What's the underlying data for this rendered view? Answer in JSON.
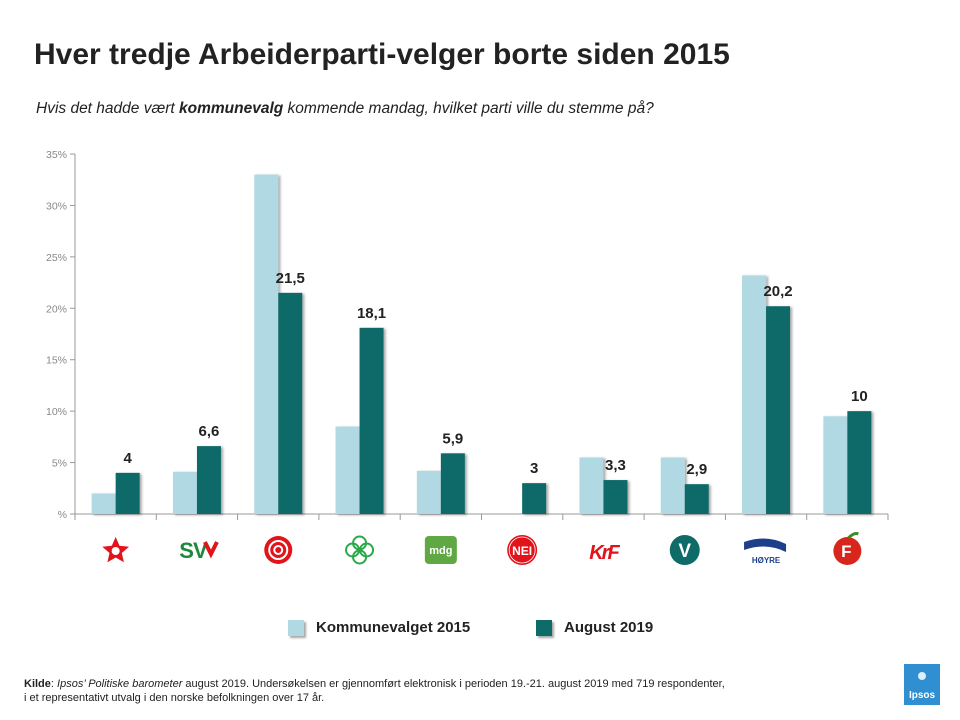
{
  "title": "Hver tredje Arbeiderparti-velger borte siden 2015",
  "subtitle": {
    "before": "Hvis det hadde vært ",
    "bold": "kommunevalg",
    "after": " kommende mandag, hvilket parti ville du stemme på?"
  },
  "colors": {
    "series_2015": "#b0d9e3",
    "series_2019": "#0e6b68",
    "axis": "#999999",
    "tick_text": "#888888"
  },
  "chart_data": {
    "type": "bar",
    "title": "Hver tredje Arbeiderparti-velger borte siden 2015",
    "xlabel": "",
    "ylabel": "",
    "ylim": [
      0,
      35
    ],
    "yticks": [
      0,
      5,
      10,
      15,
      20,
      25,
      30,
      35
    ],
    "ytick_labels": [
      "%",
      "5%",
      "10%",
      "15%",
      "20%",
      "25%",
      "30%",
      "35%"
    ],
    "categories": [
      "Rødt",
      "SV",
      "Arbeiderpartiet",
      "Senterpartiet",
      "MDG",
      "Folkeaksjonen nei til mer bompenger",
      "KrF",
      "Venstre",
      "Høyre",
      "FrP"
    ],
    "series": [
      {
        "name": "Kommunevalget 2015",
        "values": [
          2.0,
          4.1,
          33.0,
          8.5,
          4.2,
          0,
          5.5,
          5.5,
          23.2,
          9.5
        ]
      },
      {
        "name": "August 2019",
        "values": [
          4,
          6.6,
          21.5,
          18.1,
          5.9,
          3,
          3.3,
          2.9,
          20.2,
          10
        ]
      }
    ],
    "data_labels": [
      "4",
      "6,6",
      "21,5",
      "18,1",
      "5,9",
      "3",
      "3,3",
      "2,9",
      "20,2",
      "10"
    ],
    "party_logos": [
      {
        "icon": "rodt-star-icon",
        "text": ""
      },
      {
        "icon": "sv-logo-icon",
        "text": "SV"
      },
      {
        "icon": "ap-rose-icon",
        "text": ""
      },
      {
        "icon": "sp-clover-icon",
        "text": ""
      },
      {
        "icon": "mdg-logo-icon",
        "text": "mdg"
      },
      {
        "icon": "fnb-logo-icon",
        "text": "NEI"
      },
      {
        "icon": "krf-logo-icon",
        "text": "KrF"
      },
      {
        "icon": "venstre-logo-icon",
        "text": "V"
      },
      {
        "icon": "hoyre-logo-icon",
        "text": "HØYRE"
      },
      {
        "icon": "frp-apple-icon",
        "text": "F"
      }
    ],
    "legend": [
      "Kommunevalget 2015",
      "August 2019"
    ],
    "legend_position": "bottom"
  },
  "footer": {
    "source_label": "Kilde",
    "source_name": "Ipsos’ Politiske barometer",
    "line1_rest": " august 2019. Undersøkelsen er gjennomført elektronisk i perioden 19.-21. august 2019 med 719 respondenter,",
    "line2": "i et representativt utvalg i den norske befolkningen over 17 år."
  },
  "brand": {
    "logo_text": "Ipsos"
  }
}
